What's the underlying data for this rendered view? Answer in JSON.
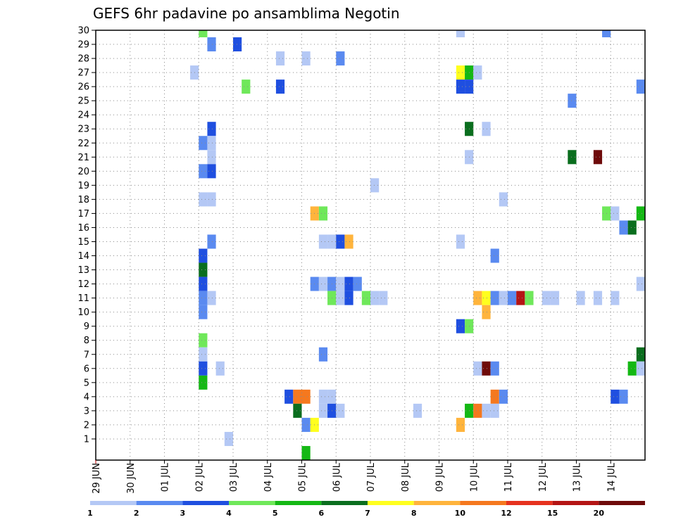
{
  "chart_data": {
    "type": "heatmap",
    "title": "GEFS 6hr padavine po ansamblima Negotin",
    "xlabel": "",
    "ylabel": "",
    "x_unit": "6-hour steps",
    "xlim": [
      0,
      64
    ],
    "ylim": [
      0,
      30
    ],
    "x_tick_labels": [
      "29 JUN",
      "30 JUN",
      "01 JUL",
      "02 JUL",
      "03 JUL",
      "04 JUL",
      "05 JUL",
      "06 JUL",
      "07 JUL",
      "08 JUL",
      "09 JUL",
      "10 JUL",
      "11 JUL",
      "12 JUL",
      "13 JUL",
      "14 JUL"
    ],
    "y_ticks": [
      1,
      2,
      3,
      4,
      5,
      6,
      7,
      8,
      9,
      10,
      11,
      12,
      13,
      14,
      15,
      16,
      17,
      18,
      19,
      20,
      21,
      22,
      23,
      24,
      25,
      26,
      27,
      28,
      29,
      30
    ],
    "grid": true,
    "colorbar": {
      "labels": [
        "1",
        "2",
        "3",
        "4",
        "5",
        "6",
        "7",
        "8",
        "10",
        "12",
        "15",
        "20"
      ],
      "colors": [
        "#b4c8f5",
        "#5a8af0",
        "#1f4fe0",
        "#6fe85a",
        "#14b814",
        "#0a6e1e",
        "#ffff1e",
        "#ffb43c",
        "#f5781e",
        "#e6321e",
        "#b41414",
        "#6e0a0a"
      ]
    },
    "cells": [
      {
        "x": 12,
        "y": 30,
        "c": 4
      },
      {
        "x": 42,
        "y": 30,
        "c": 1
      },
      {
        "x": 59,
        "y": 30,
        "c": 2
      },
      {
        "x": 13,
        "y": 29,
        "c": 2
      },
      {
        "x": 16,
        "y": 29,
        "c": 3
      },
      {
        "x": 21,
        "y": 28,
        "c": 1
      },
      {
        "x": 24,
        "y": 28,
        "c": 1
      },
      {
        "x": 28,
        "y": 28,
        "c": 2
      },
      {
        "x": 11,
        "y": 27,
        "c": 1
      },
      {
        "x": 42,
        "y": 27,
        "c": 7
      },
      {
        "x": 43,
        "y": 27,
        "c": 5
      },
      {
        "x": 44,
        "y": 27,
        "c": 1
      },
      {
        "x": 17,
        "y": 26,
        "c": 4
      },
      {
        "x": 21,
        "y": 26,
        "c": 3
      },
      {
        "x": 42,
        "y": 26,
        "c": 3
      },
      {
        "x": 43,
        "y": 26,
        "c": 3
      },
      {
        "x": 63,
        "y": 26,
        "c": 2
      },
      {
        "x": 55,
        "y": 25,
        "c": 2
      },
      {
        "x": 13,
        "y": 23,
        "c": 3
      },
      {
        "x": 43,
        "y": 23,
        "c": 6
      },
      {
        "x": 45,
        "y": 23,
        "c": 1
      },
      {
        "x": 12,
        "y": 22,
        "c": 2
      },
      {
        "x": 13,
        "y": 22,
        "c": 1
      },
      {
        "x": 13,
        "y": 21,
        "c": 1
      },
      {
        "x": 43,
        "y": 21,
        "c": 1
      },
      {
        "x": 55,
        "y": 21,
        "c": 6
      },
      {
        "x": 58,
        "y": 21,
        "c": 12
      },
      {
        "x": 12,
        "y": 20,
        "c": 2
      },
      {
        "x": 13,
        "y": 20,
        "c": 3
      },
      {
        "x": 32,
        "y": 19,
        "c": 1
      },
      {
        "x": 12,
        "y": 18,
        "c": 1
      },
      {
        "x": 13,
        "y": 18,
        "c": 1
      },
      {
        "x": 47,
        "y": 18,
        "c": 1
      },
      {
        "x": 25,
        "y": 17,
        "c": 8
      },
      {
        "x": 26,
        "y": 17,
        "c": 4
      },
      {
        "x": 59,
        "y": 17,
        "c": 4
      },
      {
        "x": 60,
        "y": 17,
        "c": 1
      },
      {
        "x": 63,
        "y": 17,
        "c": 5
      },
      {
        "x": 61,
        "y": 16,
        "c": 2
      },
      {
        "x": 62,
        "y": 16,
        "c": 6
      },
      {
        "x": 13,
        "y": 15,
        "c": 2
      },
      {
        "x": 26,
        "y": 15,
        "c": 1
      },
      {
        "x": 27,
        "y": 15,
        "c": 1
      },
      {
        "x": 28,
        "y": 15,
        "c": 3
      },
      {
        "x": 29,
        "y": 15,
        "c": 8
      },
      {
        "x": 42,
        "y": 15,
        "c": 1
      },
      {
        "x": 12,
        "y": 14,
        "c": 3
      },
      {
        "x": 46,
        "y": 14,
        "c": 2
      },
      {
        "x": 12,
        "y": 13,
        "c": 6
      },
      {
        "x": 12,
        "y": 12,
        "c": 3
      },
      {
        "x": 25,
        "y": 12,
        "c": 2
      },
      {
        "x": 26,
        "y": 12,
        "c": 1
      },
      {
        "x": 27,
        "y": 12,
        "c": 2
      },
      {
        "x": 28,
        "y": 12,
        "c": 1
      },
      {
        "x": 29,
        "y": 12,
        "c": 3
      },
      {
        "x": 30,
        "y": 12,
        "c": 2
      },
      {
        "x": 63,
        "y": 12,
        "c": 1
      },
      {
        "x": 12,
        "y": 11,
        "c": 2
      },
      {
        "x": 13,
        "y": 11,
        "c": 1
      },
      {
        "x": 27,
        "y": 11,
        "c": 4
      },
      {
        "x": 28,
        "y": 11,
        "c": 1
      },
      {
        "x": 29,
        "y": 11,
        "c": 3
      },
      {
        "x": 31,
        "y": 11,
        "c": 4
      },
      {
        "x": 32,
        "y": 11,
        "c": 1
      },
      {
        "x": 33,
        "y": 11,
        "c": 1
      },
      {
        "x": 44,
        "y": 11,
        "c": 8
      },
      {
        "x": 45,
        "y": 11,
        "c": 7
      },
      {
        "x": 46,
        "y": 11,
        "c": 2
      },
      {
        "x": 47,
        "y": 11,
        "c": 1
      },
      {
        "x": 48,
        "y": 11,
        "c": 2
      },
      {
        "x": 49,
        "y": 11,
        "c": 11
      },
      {
        "x": 50,
        "y": 11,
        "c": 4
      },
      {
        "x": 52,
        "y": 11,
        "c": 1
      },
      {
        "x": 53,
        "y": 11,
        "c": 1
      },
      {
        "x": 56,
        "y": 11,
        "c": 1
      },
      {
        "x": 58,
        "y": 11,
        "c": 1
      },
      {
        "x": 60,
        "y": 11,
        "c": 1
      },
      {
        "x": 12,
        "y": 10,
        "c": 2
      },
      {
        "x": 45,
        "y": 10,
        "c": 8
      },
      {
        "x": 42,
        "y": 9,
        "c": 3
      },
      {
        "x": 43,
        "y": 9,
        "c": 4
      },
      {
        "x": 12,
        "y": 8,
        "c": 4
      },
      {
        "x": 12,
        "y": 7,
        "c": 1
      },
      {
        "x": 26,
        "y": 7,
        "c": 2
      },
      {
        "x": 63,
        "y": 7,
        "c": 6
      },
      {
        "x": 12,
        "y": 6,
        "c": 3
      },
      {
        "x": 14,
        "y": 6,
        "c": 1
      },
      {
        "x": 44,
        "y": 6,
        "c": 1
      },
      {
        "x": 45,
        "y": 6,
        "c": 12
      },
      {
        "x": 46,
        "y": 6,
        "c": 2
      },
      {
        "x": 62,
        "y": 6,
        "c": 5
      },
      {
        "x": 63,
        "y": 6,
        "c": 1
      },
      {
        "x": 12,
        "y": 5,
        "c": 5
      },
      {
        "x": 22,
        "y": 4,
        "c": 3
      },
      {
        "x": 23,
        "y": 4,
        "c": 9
      },
      {
        "x": 24,
        "y": 4,
        "c": 9
      },
      {
        "x": 26,
        "y": 4,
        "c": 1
      },
      {
        "x": 27,
        "y": 4,
        "c": 1
      },
      {
        "x": 46,
        "y": 4,
        "c": 9
      },
      {
        "x": 47,
        "y": 4,
        "c": 2
      },
      {
        "x": 60,
        "y": 4,
        "c": 3
      },
      {
        "x": 61,
        "y": 4,
        "c": 2
      },
      {
        "x": 23,
        "y": 3,
        "c": 6
      },
      {
        "x": 26,
        "y": 3,
        "c": 1
      },
      {
        "x": 27,
        "y": 3,
        "c": 3
      },
      {
        "x": 28,
        "y": 3,
        "c": 1
      },
      {
        "x": 37,
        "y": 3,
        "c": 1
      },
      {
        "x": 43,
        "y": 3,
        "c": 5
      },
      {
        "x": 44,
        "y": 3,
        "c": 9
      },
      {
        "x": 45,
        "y": 3,
        "c": 1
      },
      {
        "x": 46,
        "y": 3,
        "c": 1
      },
      {
        "x": 24,
        "y": 2,
        "c": 2
      },
      {
        "x": 25,
        "y": 2,
        "c": 7
      },
      {
        "x": 42,
        "y": 2,
        "c": 8
      },
      {
        "x": 15,
        "y": 1,
        "c": 1
      },
      {
        "x": 24,
        "y": 0,
        "c": 5
      }
    ]
  }
}
